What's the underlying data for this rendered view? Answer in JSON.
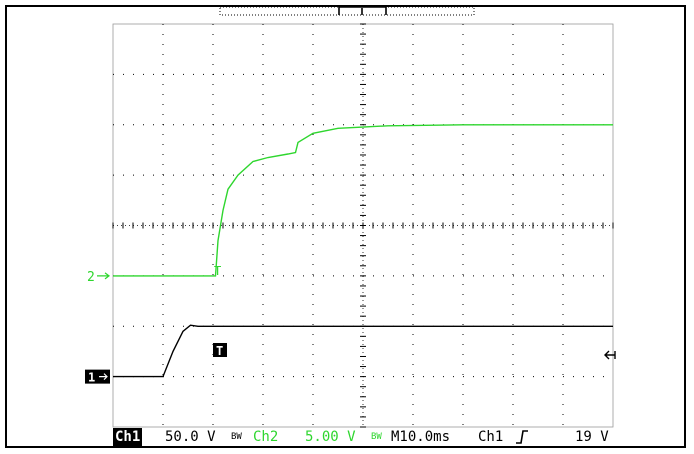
{
  "scope": {
    "colors": {
      "ch1": "#000000",
      "ch2": "#2ed62e",
      "grid": "#000000"
    },
    "markers": {
      "ch2_ground": "2",
      "ch1_ground": "1",
      "trigger_symbol": "T"
    },
    "status": {
      "ch1_label": "Ch1",
      "ch1_scale": "50.0 V",
      "bw_symbol": "BW",
      "ch2_label": "Ch2",
      "ch2_scale": "5.00 V",
      "timebase": "M10.0ms",
      "trigger_source": "Ch1",
      "trigger_slope_icon": "rising-edge-icon",
      "trigger_level": "19 V"
    }
  },
  "chart_data": {
    "type": "line",
    "x_unit": "ms",
    "y_unit": "div",
    "xlim": [
      0,
      100
    ],
    "ylim": [
      -4,
      4
    ],
    "grid": true,
    "series": [
      {
        "name": "Ch2",
        "points": [
          [
            0,
            -1
          ],
          [
            20.5,
            -1
          ],
          [
            21,
            -0.3
          ],
          [
            22,
            0.3
          ],
          [
            23,
            0.72
          ],
          [
            25,
            1.0
          ],
          [
            28,
            1.27
          ],
          [
            31,
            1.35
          ],
          [
            35,
            1.42
          ],
          [
            36.5,
            1.45
          ],
          [
            37,
            1.65
          ],
          [
            40,
            1.83
          ],
          [
            45,
            1.93
          ],
          [
            55,
            1.98
          ],
          [
            70,
            2.0
          ],
          [
            100,
            2.0
          ]
        ]
      },
      {
        "name": "Ch1",
        "points": [
          [
            0,
            -3
          ],
          [
            10,
            -3
          ],
          [
            12,
            -2.5
          ],
          [
            14,
            -2.1
          ],
          [
            15.5,
            -1.98
          ],
          [
            17,
            -2.0
          ],
          [
            100,
            -2.0
          ]
        ]
      }
    ]
  }
}
